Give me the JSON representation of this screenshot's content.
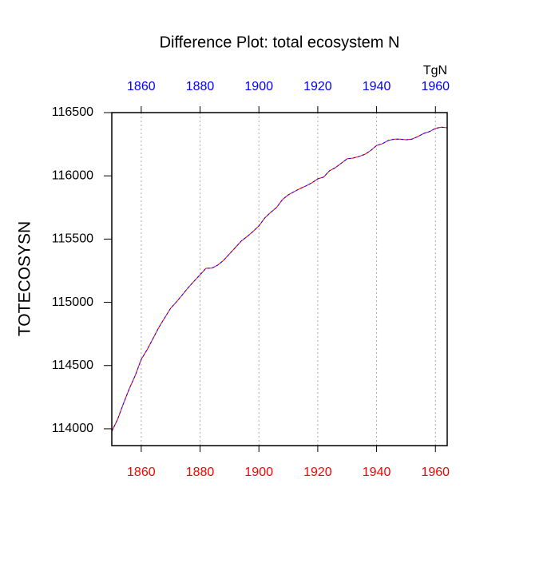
{
  "chart_data": {
    "type": "line",
    "title": "Difference Plot: total ecosystem N",
    "ylabel": "TOTECOSYSN",
    "units": "TgN",
    "x": [
      1850,
      1852,
      1854,
      1856,
      1858,
      1860,
      1862,
      1864,
      1866,
      1868,
      1870,
      1872,
      1874,
      1876,
      1878,
      1880,
      1882,
      1884,
      1886,
      1888,
      1890,
      1892,
      1894,
      1896,
      1898,
      1900,
      1902,
      1904,
      1906,
      1908,
      1910,
      1912,
      1914,
      1916,
      1918,
      1920,
      1922,
      1924,
      1926,
      1928,
      1930,
      1932,
      1934,
      1936,
      1938,
      1940,
      1942,
      1944,
      1946,
      1948,
      1950,
      1952,
      1954,
      1956,
      1958,
      1960,
      1962,
      1964
    ],
    "series": [
      {
        "color": "#ff0000",
        "values": [
          113980,
          114076,
          114202,
          114320,
          114423,
          114549,
          114625,
          114713,
          114802,
          114878,
          114953,
          115004,
          115060,
          115117,
          115168,
          115218,
          115269,
          115270,
          115294,
          115332,
          115383,
          115433,
          115484,
          115520,
          115560,
          115604,
          115667,
          115711,
          115750,
          115812,
          115850,
          115875,
          115900,
          115920,
          115945,
          115976,
          115990,
          116040,
          116065,
          116100,
          116135,
          116140,
          116153,
          116170,
          116200,
          116240,
          116254,
          116280,
          116290,
          116290,
          116285,
          116290,
          116310,
          116335,
          116350,
          116375,
          116385,
          116380
        ]
      },
      {
        "color": "#0000ff",
        "dashed": true,
        "values": [
          113980,
          114076,
          114202,
          114320,
          114423,
          114549,
          114625,
          114713,
          114802,
          114878,
          114953,
          115004,
          115060,
          115117,
          115168,
          115218,
          115269,
          115270,
          115294,
          115332,
          115383,
          115433,
          115484,
          115520,
          115560,
          115604,
          115667,
          115711,
          115750,
          115812,
          115850,
          115875,
          115900,
          115920,
          115945,
          115976,
          115990,
          116040,
          116065,
          116100,
          116135,
          116140,
          116153,
          116170,
          116200,
          116240,
          116254,
          116280,
          116290,
          116290,
          116285,
          116290,
          116310,
          116335,
          116350,
          116375,
          116385,
          116380
        ]
      }
    ],
    "xlim": [
      1850,
      1964
    ],
    "xticks": [
      1860,
      1880,
      1900,
      1920,
      1940,
      1960
    ],
    "x_tick_color": "#ff0000",
    "x2ticks": [
      1860,
      1880,
      1900,
      1920,
      1940,
      1960
    ],
    "x2_tick_color": "#0000ff",
    "ylim": [
      113867,
      116500
    ],
    "yticks": [
      114000,
      114500,
      115000,
      115500,
      116000,
      116500
    ],
    "grid": "x"
  }
}
